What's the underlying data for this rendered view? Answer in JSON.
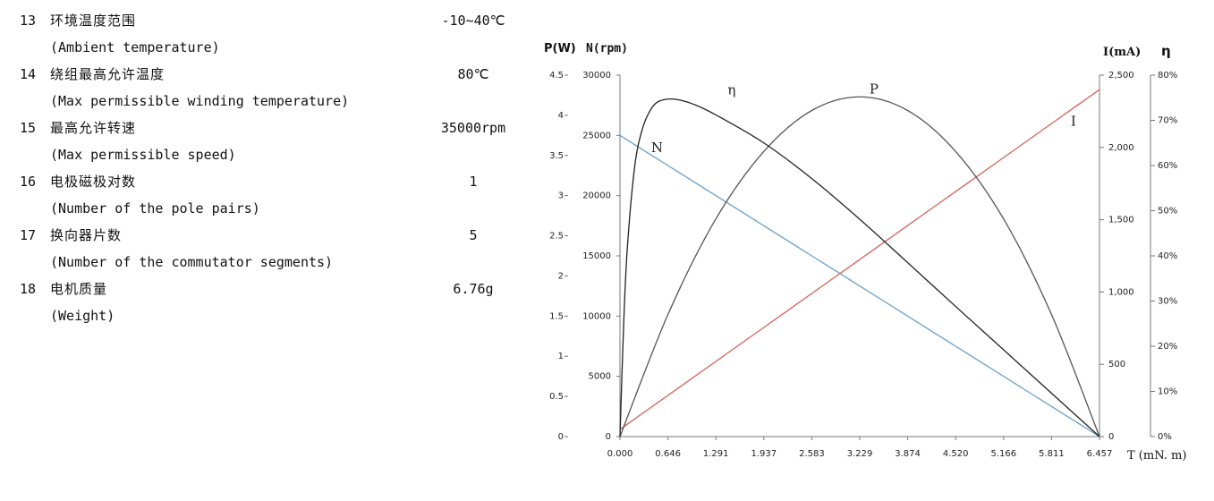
{
  "specs": [
    {
      "no": "13",
      "cn": "环境温度范围",
      "en": "(Ambient temperature)",
      "value": "-10~40℃"
    },
    {
      "no": "14",
      "cn": "绕组最高允许温度",
      "en": "(Max permissible winding temperature)",
      "value": "80℃"
    },
    {
      "no": "15",
      "cn": "最高允许转速",
      "en": "(Max permissible speed)",
      "value": "35000rpm"
    },
    {
      "no": "16",
      "cn": "电极磁极对数",
      "en": "(Number of the pole pairs)",
      "value": "1"
    },
    {
      "no": "17",
      "cn": "换向器片数",
      "en": "(Number of the commutator segments)",
      "value": "5"
    },
    {
      "no": "18",
      "cn": "电机质量",
      "en": "(Weight)",
      "value": "6.76g"
    }
  ],
  "chart_data": {
    "type": "line",
    "x": [
      0.0,
      0.646,
      1.291,
      1.937,
      2.583,
      3.229,
      3.874,
      4.52,
      5.166,
      5.811,
      6.457
    ],
    "xlabel": "T (mN. m)",
    "xticks": [
      "0.000",
      "0.646",
      "1.291",
      "1.937",
      "2.583",
      "3.229",
      "3.874",
      "4.520",
      "5.166",
      "5.811",
      "6.457"
    ],
    "axes": {
      "P": {
        "label": "P(W)",
        "range": [
          0,
          4.5
        ],
        "ticks": [
          "0",
          "0.5",
          "1",
          "1.5",
          "2",
          "2.5",
          "3",
          "3.5",
          "4",
          "4.5"
        ]
      },
      "N": {
        "label": "N(rpm)",
        "range": [
          0,
          30000
        ],
        "ticks": [
          "0",
          "5000",
          "10000",
          "15000",
          "20000",
          "25000",
          "30000"
        ]
      },
      "I": {
        "label": "I(mA)",
        "range": [
          0,
          2500
        ],
        "ticks": [
          "0",
          "500",
          "1,000",
          "1,500",
          "2,000",
          "2,500"
        ]
      },
      "eta": {
        "label": "η",
        "range": [
          0,
          80
        ],
        "ticks": [
          "0%",
          "10%",
          "20%",
          "30%",
          "40%",
          "50%",
          "60%",
          "70%",
          "80%"
        ]
      }
    },
    "series": [
      {
        "name": "N",
        "axis": "N",
        "color": "#6a9fc9",
        "values": [
          25000,
          22500,
          20000,
          17500,
          15000,
          12500,
          10000,
          7500,
          5000,
          2500,
          0
        ]
      },
      {
        "name": "I",
        "axis": "I",
        "color": "#d9605e",
        "values": [
          50,
          285,
          520,
          755,
          990,
          1225,
          1460,
          1695,
          1930,
          2165,
          2400
        ]
      },
      {
        "name": "P",
        "axis": "P",
        "color": "#555555",
        "values": [
          0,
          1.52,
          2.71,
          3.55,
          4.06,
          4.23,
          4.06,
          3.55,
          2.71,
          1.52,
          0
        ]
      },
      {
        "name": "η",
        "axis": "eta",
        "color": "#222222",
        "x": [
          0.0,
          0.05,
          0.1,
          0.2,
          0.3,
          0.4,
          0.5,
          0.646,
          0.8,
          1.0,
          1.291,
          1.937,
          2.583,
          3.229,
          3.874,
          4.52,
          5.166,
          5.811,
          6.457
        ],
        "values": [
          0,
          25,
          42,
          60,
          68,
          72,
          74,
          74.7,
          74.5,
          73.5,
          71.2,
          65,
          57.1,
          48.1,
          38.5,
          28.8,
          19.2,
          9.6,
          0
        ]
      }
    ]
  }
}
